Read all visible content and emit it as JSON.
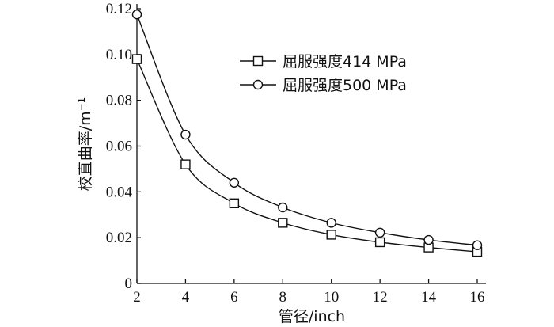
{
  "chart_data": {
    "type": "line",
    "xlabel": "管径/inch",
    "ylabel": "校直曲率/m",
    "ylabel_sup": "−1",
    "xlim": [
      2,
      16
    ],
    "ylim": [
      0,
      0.12
    ],
    "xticks": [
      "2",
      "4",
      "6",
      "8",
      "10",
      "12",
      "14",
      "16"
    ],
    "yticks": [
      "0",
      "0.02",
      "0.04",
      "0.06",
      "0.08",
      "0.10",
      "0.12"
    ],
    "x": [
      2,
      4,
      6,
      8,
      10,
      12,
      14,
      16
    ],
    "series": [
      {
        "name": "屈服强度414 MPa",
        "marker": "square",
        "values": [
          0.098,
          0.052,
          0.035,
          0.0265,
          0.0213,
          0.018,
          0.0157,
          0.0138
        ]
      },
      {
        "name": "屈服强度500 MPa",
        "marker": "circle",
        "values": [
          0.1175,
          0.065,
          0.044,
          0.0332,
          0.0265,
          0.0222,
          0.019,
          0.0167
        ]
      }
    ],
    "legend": "upper-center",
    "grid": false
  }
}
